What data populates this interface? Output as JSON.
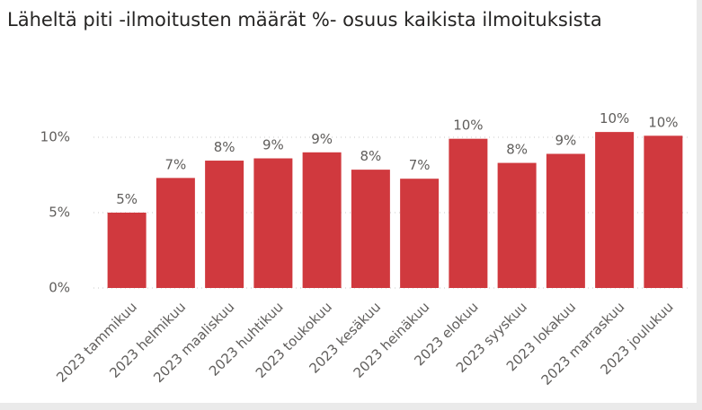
{
  "chart_data": {
    "type": "bar",
    "title": "Läheltä piti -ilmoitusten määrät %- osuus kaikista ilmoituksista",
    "categories": [
      "2023 tammikuu",
      "2023 helmikuu",
      "2023 maaliskuu",
      "2023 huhtikuu",
      "2023 toukokuu",
      "2023 kesäkuu",
      "2023 heinäkuu",
      "2023 elokuu",
      "2023 syyskuu",
      "2023 lokakuu",
      "2023 marraskuu",
      "2023 joulukuu"
    ],
    "values": [
      5.0,
      7.3,
      8.45,
      8.6,
      9.0,
      7.85,
      7.25,
      9.9,
      8.3,
      8.9,
      10.35,
      10.1
    ],
    "value_labels": [
      "5%",
      "7%",
      "8%",
      "9%",
      "9%",
      "8%",
      "7%",
      "10%",
      "8%",
      "9%",
      "10%",
      "10%"
    ],
    "color": "#d0393e",
    "ylim": [
      0,
      12.5
    ],
    "yticks": [
      {
        "value": 0,
        "label": "0%"
      },
      {
        "value": 5,
        "label": "5%"
      },
      {
        "value": 10,
        "label": "10%"
      }
    ],
    "grid": true
  }
}
